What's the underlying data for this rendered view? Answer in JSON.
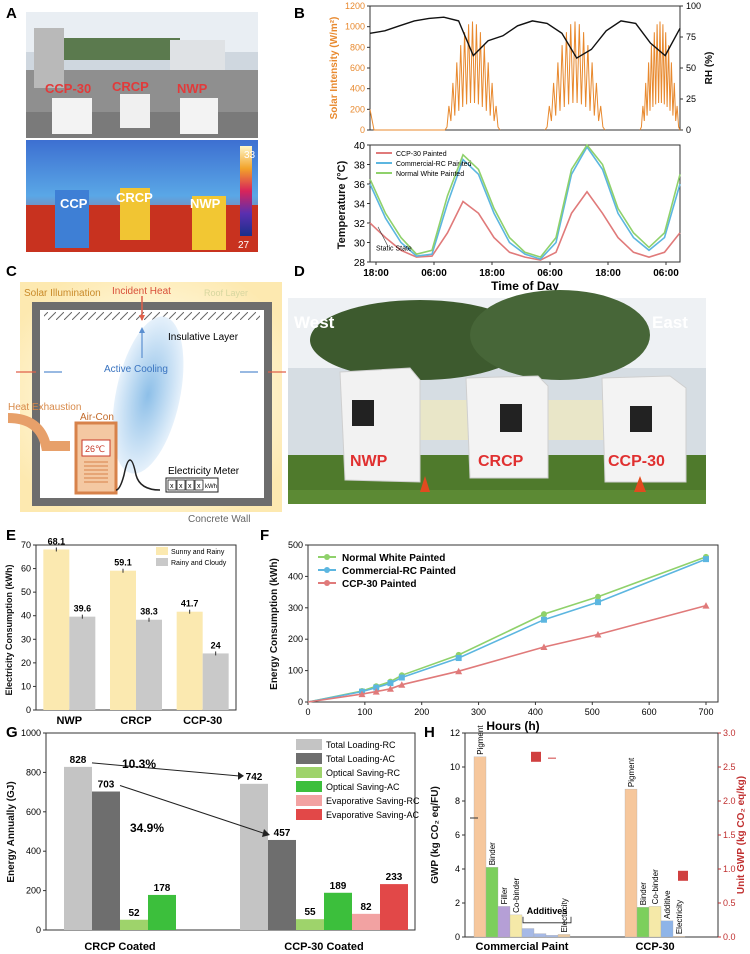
{
  "panels": {
    "A": {
      "letter": "A",
      "photo_labels": [
        "CCP-30",
        "CRCP",
        "NWP"
      ],
      "thermal_labels": [
        "CCP",
        "CRCP",
        "NWP"
      ],
      "colorbar_max": "33",
      "colorbar_min": "27"
    },
    "B": {
      "letter": "B",
      "top_left_label": "Solar Intensity (W/m²)",
      "top_right_label": "RH (%)",
      "bottom_ylabel": "Temperature (°C)",
      "xlabel": "Time of Day",
      "annotation": "Static State"
    },
    "C": {
      "letter": "C",
      "solar": "Solar Illumination",
      "incident": "Incident Heat",
      "roof": "Roof Layer",
      "insulative": "Insulative Layer",
      "active": "Active Cooling",
      "exhaust": "Heat Exhaustion",
      "aircon": "Air-Con",
      "setpoint": "26℃",
      "meter": "Electricity Meter",
      "meter_digits": [
        "x",
        "x",
        "x",
        "x"
      ],
      "meter_unit": "kWh",
      "wall": "Concrete Wall"
    },
    "D": {
      "letter": "D",
      "west": "West",
      "east": "East",
      "huts": [
        "NWP",
        "CRCP",
        "CCP-30"
      ]
    },
    "E": {
      "letter": "E"
    },
    "F": {
      "letter": "F"
    },
    "G": {
      "letter": "G"
    },
    "H": {
      "letter": "H"
    }
  },
  "colors": {
    "orange": "#e8892e",
    "green": "#8fd16b",
    "blue": "#5cb6e0",
    "red": "#e07a7a",
    "yellow_bar": "#fbe9b0",
    "grey_bar": "#c9c9c9"
  },
  "chart_data": [
    {
      "id": "B-top",
      "type": "line",
      "ylabel": "Solar Intensity (W/m²)",
      "y2label": "RH (%)",
      "ylim": [
        0,
        1200
      ],
      "y2lim": [
        0,
        100
      ],
      "yticks": [
        0,
        200,
        400,
        600,
        800,
        1000,
        1200
      ],
      "y2ticks": [
        0,
        25,
        50,
        75,
        100
      ]
    },
    {
      "id": "B-bottom",
      "type": "line",
      "xlabel": "Time of Day",
      "ylabel": "Temperature (°C)",
      "ylim": [
        28,
        40
      ],
      "yticks": [
        28,
        30,
        32,
        34,
        36,
        38,
        40
      ],
      "xticks": [
        "18:00",
        "06:00",
        "18:00",
        "06:00",
        "18:00",
        "06:00"
      ],
      "series": [
        {
          "name": "CCP-30 Painted",
          "color": "#e07a7a",
          "x": [
            0,
            3,
            6,
            9,
            12,
            15,
            18,
            21,
            24,
            27,
            30,
            33,
            36,
            39,
            42,
            45,
            48,
            51,
            54,
            57,
            60
          ],
          "values": [
            32,
            30.5,
            29.2,
            28.5,
            28.6,
            31,
            34.2,
            33,
            30.5,
            29,
            28.5,
            28.2,
            29,
            33,
            35.2,
            33,
            30.5,
            29,
            28.5,
            29,
            31
          ]
        },
        {
          "name": "Commercial-RC Painted",
          "color": "#5cb6e0",
          "x": [
            0,
            3,
            6,
            9,
            12,
            15,
            18,
            21,
            24,
            27,
            30,
            33,
            36,
            39,
            42,
            45,
            48,
            51,
            54,
            57,
            60
          ],
          "values": [
            36,
            32.5,
            30,
            28.6,
            28.8,
            34,
            38.5,
            37,
            33,
            30,
            28.8,
            28.3,
            30,
            37,
            39.8,
            37.5,
            33,
            30.5,
            29.2,
            30.5,
            36
          ]
        },
        {
          "name": "Normal White Painted",
          "color": "#8fd16b",
          "x": [
            0,
            3,
            6,
            9,
            12,
            15,
            18,
            21,
            24,
            27,
            30,
            33,
            36,
            39,
            42,
            45,
            48,
            51,
            54,
            57,
            60
          ],
          "values": [
            36.5,
            33,
            30.5,
            28.8,
            29.2,
            34.8,
            39,
            37.5,
            33.5,
            30.5,
            29,
            28.5,
            30.5,
            37.5,
            40,
            38,
            33.5,
            31,
            29.5,
            31,
            37
          ]
        }
      ]
    },
    {
      "id": "E",
      "type": "bar",
      "ylabel": "Electricity Consumption (kWh)",
      "ylim": [
        0,
        70
      ],
      "yticks": [
        0,
        10,
        20,
        30,
        40,
        50,
        60,
        70
      ],
      "categories": [
        "NWP",
        "CRCP",
        "CCP-30"
      ],
      "series": [
        {
          "name": "Sunny and Rainy",
          "values": [
            68.1,
            59.1,
            41.7
          ]
        },
        {
          "name": "Rainy and Cloudy",
          "values": [
            39.6,
            38.3,
            24
          ]
        }
      ],
      "labels": [
        [
          "68.1",
          "59.1",
          "41.7"
        ],
        [
          "39.6",
          "38.3",
          "24"
        ]
      ]
    },
    {
      "id": "F",
      "type": "line",
      "xlabel": "Hours (h)",
      "ylabel": "Energy Consumption (kWh)",
      "xlim": [
        0,
        700
      ],
      "ylim": [
        0,
        500
      ],
      "xticks": [
        0,
        100,
        200,
        300,
        400,
        500,
        600,
        700
      ],
      "yticks": [
        0,
        100,
        200,
        300,
        400,
        500
      ],
      "series": [
        {
          "name": "Normal White Painted",
          "x": [
            0,
            95,
            120,
            145,
            165,
            265,
            415,
            510,
            700
          ],
          "values": [
            0,
            35,
            50,
            65,
            85,
            150,
            280,
            335,
            462
          ]
        },
        {
          "name": "Commercial-RC Painted",
          "x": [
            0,
            95,
            120,
            145,
            165,
            265,
            415,
            510,
            700
          ],
          "values": [
            0,
            33,
            46,
            60,
            78,
            140,
            262,
            318,
            455
          ]
        },
        {
          "name": "CCP-30 Painted",
          "x": [
            0,
            95,
            120,
            145,
            165,
            265,
            415,
            510,
            700
          ],
          "values": [
            0,
            25,
            33,
            42,
            55,
            98,
            175,
            215,
            307
          ]
        }
      ]
    },
    {
      "id": "G",
      "type": "bar",
      "ylabel": "Energy Annually (GJ)",
      "ylim": [
        0,
        1000
      ],
      "yticks": [
        0,
        200,
        400,
        600,
        800,
        1000
      ],
      "categories": [
        "CRCP Coated",
        "CCP-30 Coated"
      ],
      "series": [
        {
          "name": "Total Loading-RC",
          "values": [
            828,
            742
          ]
        },
        {
          "name": "Total Loading-AC",
          "values": [
            703,
            457
          ]
        },
        {
          "name": "Optical Saving-RC",
          "values": [
            52,
            55
          ]
        },
        {
          "name": "Optical Saving-AC",
          "values": [
            178,
            189
          ]
        },
        {
          "name": "Evaporative Saving-RC",
          "values": [
            null,
            82
          ]
        },
        {
          "name": "Evaporative Saving-AC",
          "values": [
            null,
            233
          ]
        }
      ],
      "annotations": [
        "10.3%",
        "34.9%"
      ]
    },
    {
      "id": "H",
      "type": "bar",
      "ylabel": "GWP (kg CO₂ eq/FU)",
      "y2label": "Unit GWP (kg CO₂ eq/kg)",
      "ylim": [
        0,
        12
      ],
      "y2lim": [
        0,
        3
      ],
      "yticks": [
        0,
        2,
        4,
        6,
        8,
        10,
        12
      ],
      "y2ticks": [
        "0.0",
        "0.5",
        "1.0",
        "1.5",
        "2.0",
        "2.5",
        "3.0"
      ],
      "categories": [
        "Commercial Paint",
        "CCP-30"
      ],
      "group_label": "Additives",
      "bars": [
        {
          "group": "Commercial Paint",
          "name": "Pigment",
          "value": 10.6
        },
        {
          "group": "Commercial Paint",
          "name": "Binder",
          "value": 4.1
        },
        {
          "group": "Commercial Paint",
          "name": "Filler",
          "value": 1.8
        },
        {
          "group": "Commercial Paint",
          "name": "Co-binder",
          "value": 1.3
        },
        {
          "group": "Commercial Paint",
          "name": "",
          "value": 0.5
        },
        {
          "group": "Commercial Paint",
          "name": "",
          "value": 0.2
        },
        {
          "group": "Commercial Paint",
          "name": "",
          "value": 0.1
        },
        {
          "group": "Commercial Paint",
          "name": "Electricity",
          "value": 0.15
        },
        {
          "group": "CCP-30",
          "name": "Pigment",
          "value": 8.7
        },
        {
          "group": "CCP-30",
          "name": "Binder",
          "value": 1.75
        },
        {
          "group": "CCP-30",
          "name": "Co-binder",
          "value": 1.8
        },
        {
          "group": "CCP-30",
          "name": "Additive",
          "value": 0.95
        },
        {
          "group": "CCP-30",
          "name": "Electricity",
          "value": 0.05
        }
      ],
      "unit_gwp": [
        2.65,
        0.9
      ]
    }
  ]
}
